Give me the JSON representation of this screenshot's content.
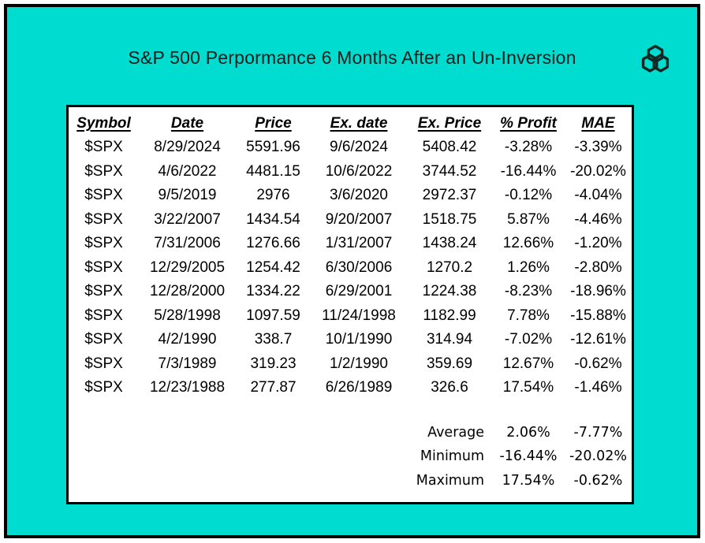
{
  "header": {
    "title": "S&P 500 Perpormance 6 Months After an Un-Inversion",
    "logo_icon": "interlocked-hexagons-icon"
  },
  "colors": {
    "background_teal": "#00DCD0",
    "frame_border": "#000000",
    "table_background": "#FFFFFF",
    "table_border": "#000000",
    "text": "#000000",
    "logo": "#122824"
  },
  "chart_data": {
    "type": "table",
    "title": "S&P 500 Perpormance 6 Months After an Un-Inversion",
    "columns": [
      "Symbol",
      "Date",
      "Price",
      "Ex. date",
      "Ex. Price",
      "% Profit",
      "MAE"
    ],
    "rows": [
      [
        "$SPX",
        "8/29/2024",
        "5591.96",
        "9/6/2024",
        "5408.42",
        "-3.28%",
        "-3.39%"
      ],
      [
        "$SPX",
        "4/6/2022",
        "4481.15",
        "10/6/2022",
        "3744.52",
        "-16.44%",
        "-20.02%"
      ],
      [
        "$SPX",
        "9/5/2019",
        "2976",
        "3/6/2020",
        "2972.37",
        "-0.12%",
        "-4.04%"
      ],
      [
        "$SPX",
        "3/22/2007",
        "1434.54",
        "9/20/2007",
        "1518.75",
        "5.87%",
        "-4.46%"
      ],
      [
        "$SPX",
        "7/31/2006",
        "1276.66",
        "1/31/2007",
        "1438.24",
        "12.66%",
        "-1.20%"
      ],
      [
        "$SPX",
        "12/29/2005",
        "1254.42",
        "6/30/2006",
        "1270.2",
        "1.26%",
        "-2.80%"
      ],
      [
        "$SPX",
        "12/28/2000",
        "1334.22",
        "6/29/2001",
        "1224.38",
        "-8.23%",
        "-18.96%"
      ],
      [
        "$SPX",
        "5/28/1998",
        "1097.59",
        "11/24/1998",
        "1182.99",
        "7.78%",
        "-15.88%"
      ],
      [
        "$SPX",
        "4/2/1990",
        "338.7",
        "10/1/1990",
        "314.94",
        "-7.02%",
        "-12.61%"
      ],
      [
        "$SPX",
        "7/3/1989",
        "319.23",
        "1/2/1990",
        "359.69",
        "12.67%",
        "-0.62%"
      ],
      [
        "$SPX",
        "12/23/1988",
        "277.87",
        "6/26/1989",
        "326.6",
        "17.54%",
        "-1.46%"
      ]
    ],
    "summary_rows": [
      [
        "Average",
        "2.06%",
        "-7.77%"
      ],
      [
        "Minimum",
        "-16.44%",
        "-20.02%"
      ],
      [
        "Maximum",
        "17.54%",
        "-0.62%"
      ]
    ]
  }
}
